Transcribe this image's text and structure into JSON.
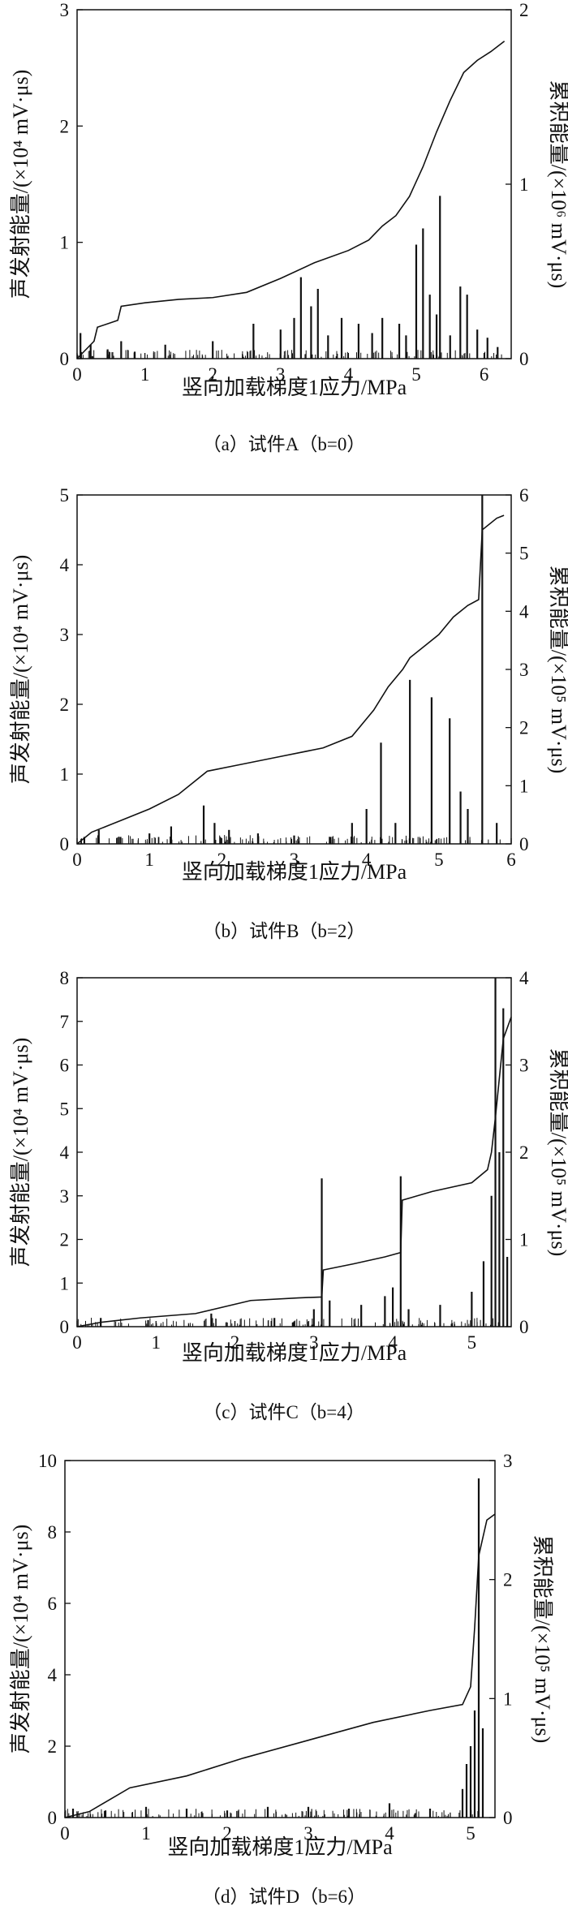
{
  "figure": {
    "background": "#ffffff",
    "ink": "#111111"
  },
  "chart_data": [
    {
      "type": "bar+line",
      "caption": "（a）试件A（b=0）",
      "xlabel": "竖向加载梯度1应力/MPa",
      "ylabel_left": "声发射能量/(×10⁴ mV·μs)",
      "ylabel_right": "累积能量/(×10⁶ mV·μs)",
      "xlim": [
        0,
        6.4
      ],
      "xticks": [
        0,
        1,
        2,
        3,
        4,
        5,
        6
      ],
      "ylim_left": [
        0,
        3
      ],
      "yticks_left": [
        0,
        1,
        2,
        3
      ],
      "ylim_right": [
        0,
        2
      ],
      "yticks_right": [
        0,
        1,
        2
      ],
      "bars": {
        "x": [
          0.05,
          0.2,
          0.45,
          0.65,
          0.85,
          1.3,
          2.0,
          2.6,
          3.0,
          3.2,
          3.3,
          3.45,
          3.55,
          3.7,
          3.9,
          4.15,
          4.35,
          4.5,
          4.75,
          4.85,
          5.0,
          5.1,
          5.2,
          5.3,
          5.35,
          5.5,
          5.65,
          5.75,
          5.9,
          6.05,
          6.2
        ],
        "values": [
          0.22,
          0.12,
          0.08,
          0.15,
          0.06,
          0.12,
          0.15,
          0.3,
          0.25,
          0.35,
          0.7,
          0.45,
          0.6,
          0.2,
          0.35,
          0.3,
          0.22,
          0.35,
          0.3,
          0.2,
          0.98,
          1.12,
          0.55,
          0.38,
          1.4,
          0.2,
          0.62,
          0.55,
          0.25,
          0.18,
          0.1
        ]
      },
      "cumulative": {
        "x": [
          0,
          0.25,
          0.3,
          0.6,
          0.65,
          1.0,
          1.5,
          2.0,
          2.5,
          3.0,
          3.5,
          4.0,
          4.3,
          4.5,
          4.7,
          4.9,
          5.1,
          5.3,
          5.5,
          5.7,
          5.9,
          6.1,
          6.3
        ],
        "values": [
          0,
          0.1,
          0.18,
          0.22,
          0.3,
          0.32,
          0.34,
          0.35,
          0.38,
          0.46,
          0.55,
          0.62,
          0.68,
          0.76,
          0.82,
          0.93,
          1.1,
          1.3,
          1.48,
          1.64,
          1.71,
          1.76,
          1.82
        ]
      }
    },
    {
      "type": "bar+line",
      "caption": "（b）试件B（b=2）",
      "xlabel": "竖向加载梯度1应力/MPa",
      "ylabel_left": "声发射能量/(×10⁴ mV·μs)",
      "ylabel_right": "累积能量/(×10⁵ mV·μs)",
      "xlim": [
        0,
        6
      ],
      "xticks": [
        0,
        1,
        2,
        3,
        4,
        5,
        6
      ],
      "ylim_left": [
        0,
        5
      ],
      "yticks_left": [
        0,
        1,
        2,
        3,
        4,
        5
      ],
      "ylim_right": [
        0,
        6
      ],
      "yticks_right": [
        0,
        1,
        2,
        3,
        4,
        5,
        6
      ],
      "bars": {
        "x": [
          0.1,
          0.3,
          0.6,
          1.0,
          1.3,
          1.75,
          1.9,
          2.1,
          2.5,
          3.0,
          3.5,
          3.8,
          4.0,
          4.2,
          4.4,
          4.6,
          4.9,
          5.15,
          5.3,
          5.4,
          5.6,
          5.8
        ],
        "values": [
          0.1,
          0.2,
          0.1,
          0.15,
          0.25,
          0.55,
          0.3,
          0.2,
          0.15,
          0.12,
          0.1,
          0.3,
          0.5,
          1.45,
          0.3,
          2.35,
          2.1,
          1.8,
          0.75,
          0.5,
          5.0,
          0.3
        ]
      },
      "cumulative": {
        "x": [
          0,
          0.2,
          0.6,
          1.0,
          1.4,
          1.8,
          2.2,
          2.8,
          3.4,
          3.8,
          4.1,
          4.3,
          4.5,
          4.6,
          4.8,
          5.0,
          5.2,
          5.4,
          5.55,
          5.6,
          5.8,
          5.9
        ],
        "values": [
          0,
          0.2,
          0.4,
          0.6,
          0.85,
          1.25,
          1.35,
          1.5,
          1.65,
          1.85,
          2.3,
          2.7,
          3.0,
          3.2,
          3.4,
          3.6,
          3.9,
          4.1,
          4.2,
          5.4,
          5.6,
          5.65
        ]
      }
    },
    {
      "type": "bar+line",
      "caption": "（c）试件C（b=4）",
      "xlabel": "竖向加载梯度1应力/MPa",
      "ylabel_left": "声发射能量/(×10⁴ mV·μs)",
      "ylabel_right": "累积能量/(×10⁵ mV·μs)",
      "xlim": [
        0,
        5.5
      ],
      "xticks": [
        0,
        1,
        2,
        3,
        4,
        5
      ],
      "ylim_left": [
        0,
        8
      ],
      "yticks_left": [
        0,
        1,
        2,
        3,
        4,
        5,
        6,
        7,
        8
      ],
      "ylim_right": [
        0,
        4
      ],
      "yticks_right": [
        0,
        1,
        2,
        3,
        4
      ],
      "bars": {
        "x": [
          0.3,
          0.9,
          1.7,
          2.5,
          3.0,
          3.1,
          3.2,
          3.6,
          3.9,
          4.0,
          4.1,
          4.2,
          4.6,
          5.0,
          5.15,
          5.25,
          5.3,
          5.35,
          5.4,
          5.45
        ],
        "values": [
          0.2,
          0.15,
          0.3,
          0.2,
          0.4,
          3.4,
          0.6,
          0.5,
          0.7,
          0.9,
          3.45,
          0.4,
          0.5,
          0.8,
          1.5,
          3.0,
          8.0,
          4.0,
          7.3,
          1.6
        ]
      },
      "cumulative": {
        "x": [
          0,
          0.3,
          0.8,
          1.5,
          2.2,
          2.8,
          3.1,
          3.12,
          3.5,
          3.9,
          4.1,
          4.12,
          4.5,
          5.0,
          5.2,
          5.25,
          5.3,
          5.4,
          5.5
        ],
        "values": [
          0,
          0.05,
          0.1,
          0.15,
          0.3,
          0.33,
          0.34,
          0.65,
          0.72,
          0.8,
          0.85,
          1.45,
          1.55,
          1.65,
          1.8,
          2.0,
          2.4,
          3.3,
          3.55
        ]
      }
    },
    {
      "type": "bar+line",
      "caption": "（d）试件D（b=6）",
      "xlabel": "竖向加载梯度1应力/MPa",
      "ylabel_left": "声发射能量/(×10⁴ mV·μs)",
      "ylabel_right": "累积能量/(×10⁵ mV·μs)",
      "xlim": [
        0,
        5.3
      ],
      "xticks": [
        0,
        1,
        2,
        3,
        4,
        5
      ],
      "ylim_left": [
        0,
        10
      ],
      "yticks_left": [
        0,
        2,
        4,
        6,
        8,
        10
      ],
      "ylim_right": [
        0,
        3
      ],
      "yticks_right": [
        0,
        1,
        2,
        3
      ],
      "bars": {
        "x": [
          0.1,
          0.5,
          1.0,
          1.5,
          2.0,
          2.5,
          3.0,
          3.5,
          4.0,
          4.5,
          4.9,
          4.95,
          5.0,
          5.05,
          5.1,
          5.15
        ],
        "values": [
          0.25,
          0.2,
          0.3,
          0.25,
          0.2,
          0.3,
          0.3,
          0.25,
          0.4,
          0.25,
          0.8,
          1.5,
          2.0,
          3.0,
          9.5,
          2.5
        ]
      },
      "cumulative": {
        "x": [
          0,
          0.3,
          0.8,
          1.5,
          2.2,
          3.0,
          3.8,
          4.5,
          4.9,
          5.0,
          5.05,
          5.1,
          5.2,
          5.3
        ],
        "values": [
          0,
          0.05,
          0.25,
          0.35,
          0.5,
          0.65,
          0.8,
          0.9,
          0.95,
          1.1,
          1.6,
          2.2,
          2.5,
          2.55
        ]
      }
    }
  ]
}
